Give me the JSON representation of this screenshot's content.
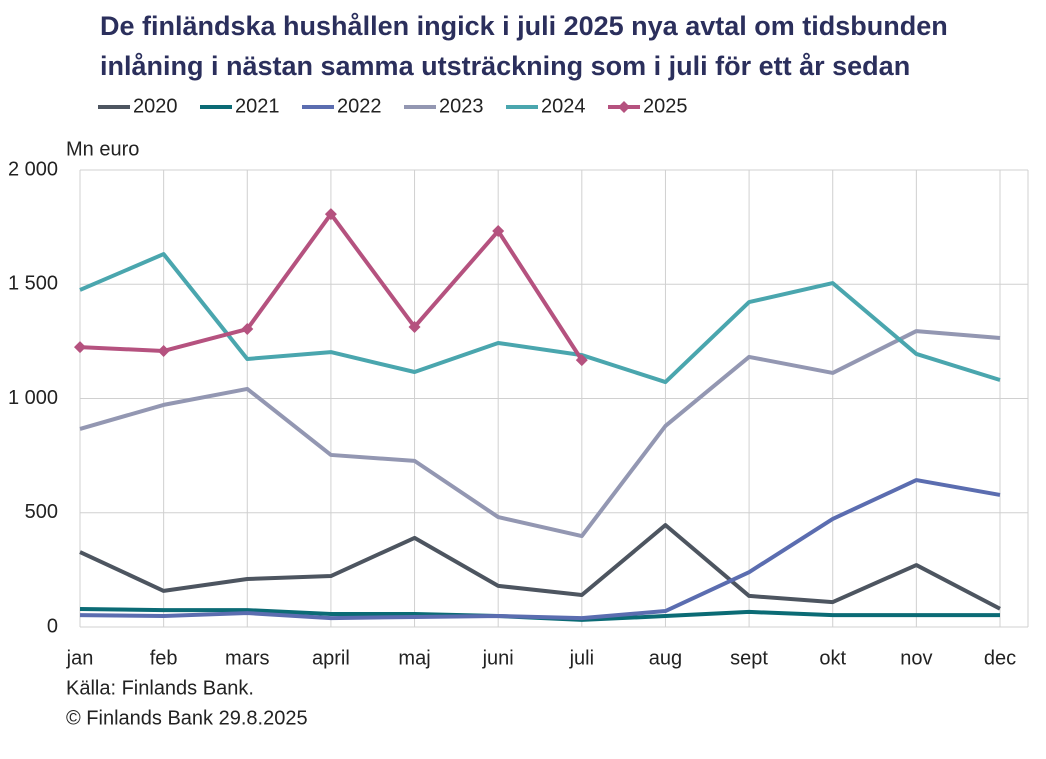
{
  "chart_data": {
    "type": "line",
    "title": [
      "De finländska hushållen ingick i juli 2025 nya avtal om tidsbunden",
      "inlåning i nästan samma utsträckning som i juli för ett år sedan"
    ],
    "y_label": "Mn euro",
    "notes": [
      "Källa: Finlands Bank.",
      "© Finlands Bank 29.8.2025"
    ],
    "categories": [
      "jan",
      "feb",
      "mars",
      "april",
      "maj",
      "juni",
      "juli",
      "aug",
      "sept",
      "okt",
      "nov",
      "dec"
    ],
    "ylim": [
      0,
      2000
    ],
    "yticks": [
      0,
      500,
      {
        "value": 1000,
        "label": "1 000"
      },
      {
        "value": 1500,
        "label": "1 500"
      },
      {
        "value": 2000,
        "label": "2 000"
      }
    ],
    "grid": true,
    "legend": "top",
    "series": [
      {
        "name": "2020",
        "color": "#4d5560",
        "values": [
          328,
          158,
          210,
          223,
          390,
          180,
          140,
          446,
          136,
          109,
          271,
          80
        ]
      },
      {
        "name": "2021",
        "color": "#0b6b75",
        "values": [
          79,
          74,
          74,
          57,
          57,
          48,
          31,
          48,
          66,
          52,
          52,
          52
        ]
      },
      {
        "name": "2022",
        "color": "#5b6db0",
        "values": [
          52,
          48,
          61,
          39,
          44,
          48,
          39,
          70,
          240,
          473,
          643,
          578
        ]
      },
      {
        "name": "2023",
        "color": "#9397b2",
        "values": [
          867,
          972,
          1042,
          753,
          727,
          481,
          398,
          880,
          1182,
          1112,
          1295,
          1265
        ]
      },
      {
        "name": "2024",
        "color": "#4aa6ae",
        "values": [
          1475,
          1632,
          1173,
          1203,
          1116,
          1243,
          1190,
          1072,
          1422,
          1505,
          1195,
          1081
        ]
      },
      {
        "name": "2025",
        "color": "#b5527f",
        "marker": "diamond",
        "values": [
          1225,
          1208,
          1304,
          1807,
          1313,
          1733,
          1168,
          null,
          null,
          null,
          null,
          null
        ]
      }
    ]
  }
}
